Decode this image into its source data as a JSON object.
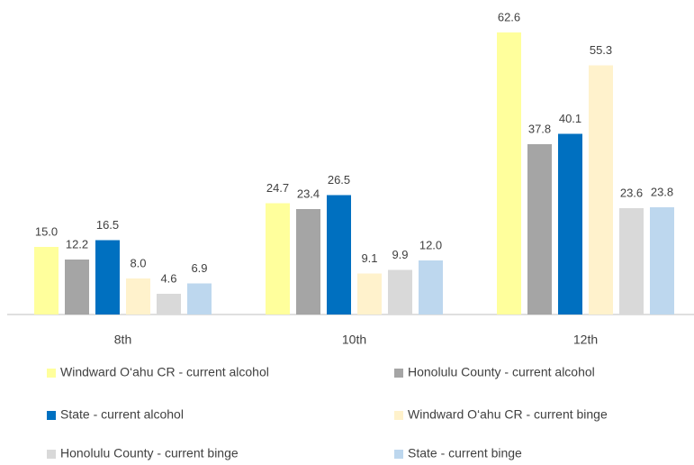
{
  "chart_data": {
    "type": "bar",
    "categories": [
      "8th",
      "10th",
      "12th"
    ],
    "series": [
      {
        "name": "Windward O‘ahu CR - current alcohol",
        "color": "#ffff9c",
        "values": [
          15,
          24.7,
          62.6
        ],
        "value_labels": [
          "15.0",
          "24.7",
          "62.6"
        ]
      },
      {
        "name": "Honolulu County - current alcohol",
        "color": "#a5a5a5",
        "values": [
          12.2,
          23.4,
          37.8
        ],
        "value_labels": [
          "12.2",
          "23.4",
          "37.8"
        ]
      },
      {
        "name": "State - current alcohol",
        "color": "#0070c0",
        "values": [
          16.5,
          26.5,
          40.1
        ],
        "value_labels": [
          "16.5",
          "26.5",
          "40.1"
        ]
      },
      {
        "name": "Windward O‘ahu CR - current binge",
        "color": "#fff2cc",
        "values": [
          8,
          9.1,
          55.3
        ],
        "value_labels": [
          "8.0",
          "9.1",
          "55.3"
        ]
      },
      {
        "name": "Honolulu County - current binge",
        "color": "#d9d9d9",
        "values": [
          4.6,
          9.9,
          23.6
        ],
        "value_labels": [
          "4.6",
          "9.9",
          "23.6"
        ]
      },
      {
        "name": "State - current binge",
        "color": "#bdd7ee",
        "values": [
          6.9,
          12,
          23.8
        ],
        "value_labels": [
          "6.9",
          "12.0",
          "23.8"
        ]
      }
    ],
    "ylim": [
      0,
      65
    ],
    "legend": "bottom"
  }
}
